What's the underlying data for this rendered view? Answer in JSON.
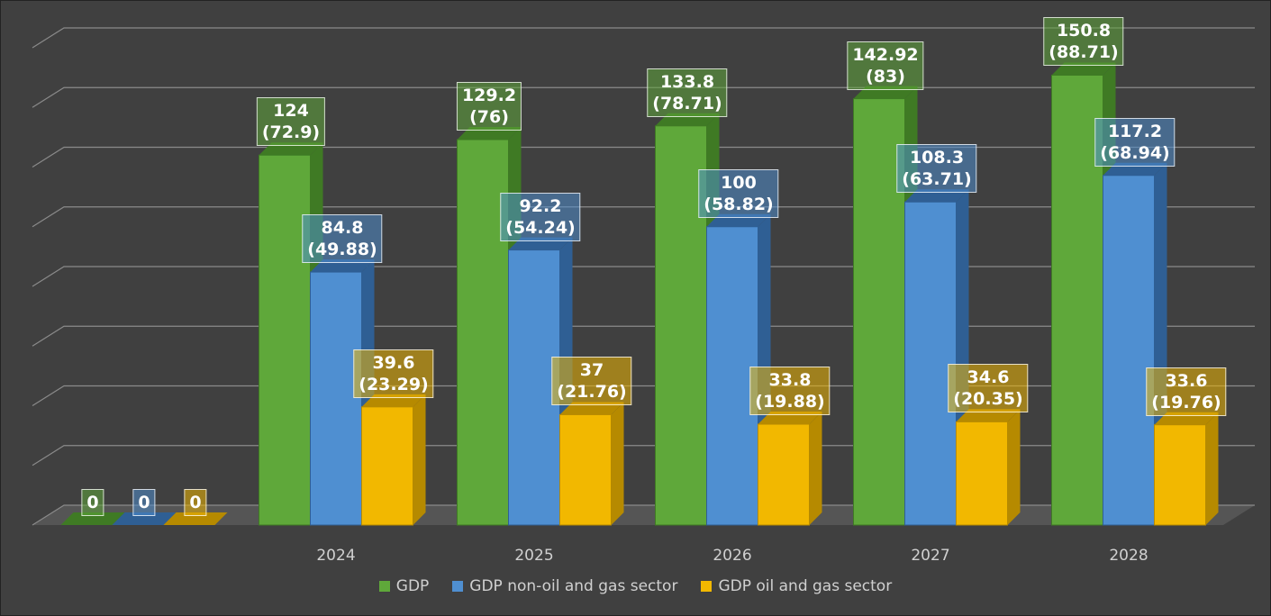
{
  "chart_data": {
    "type": "bar3d",
    "categories": [
      null,
      "2024",
      "2025",
      "2026",
      "2027",
      "2028"
    ],
    "series": [
      {
        "name": "GDP",
        "color": "#5fa83a",
        "side": "#3f7a24",
        "values": [
          0,
          124,
          129.2,
          133.8,
          142.92,
          150.8
        ],
        "value_labels": [
          "0",
          "124\n(72.9)",
          "129.2\n(76)",
          "133.8\n(78.71)",
          "142.92\n(83)",
          "150.8\n(88.71)"
        ]
      },
      {
        "name": "GDP non-oil and gas sector",
        "color": "#4f8fd1",
        "side": "#2f5f94",
        "values": [
          0,
          84.8,
          92.2,
          100,
          108.3,
          117.2
        ],
        "value_labels": [
          "0",
          "84.8\n(49.88)",
          "92.2\n(54.24)",
          "100\n(58.82)",
          "108.3\n(63.71)",
          "117.2\n(68.94)"
        ]
      },
      {
        "name": "GDP oil and gas sector",
        "color": "#f2b800",
        "side": "#b68a00",
        "values": [
          0,
          39.6,
          37,
          33.8,
          34.6,
          33.6
        ],
        "value_labels": [
          "0",
          "39.6\n(23.29)",
          "37\n(21.76)",
          "33.8\n(19.88)",
          "34.6\n(20.35)",
          "33.6\n(19.76)"
        ]
      }
    ],
    "ylim": [
      0,
      160
    ],
    "yticks": [
      0,
      20,
      40,
      60,
      80,
      100,
      120,
      140,
      160
    ],
    "grid": true,
    "legend": "bottom"
  }
}
